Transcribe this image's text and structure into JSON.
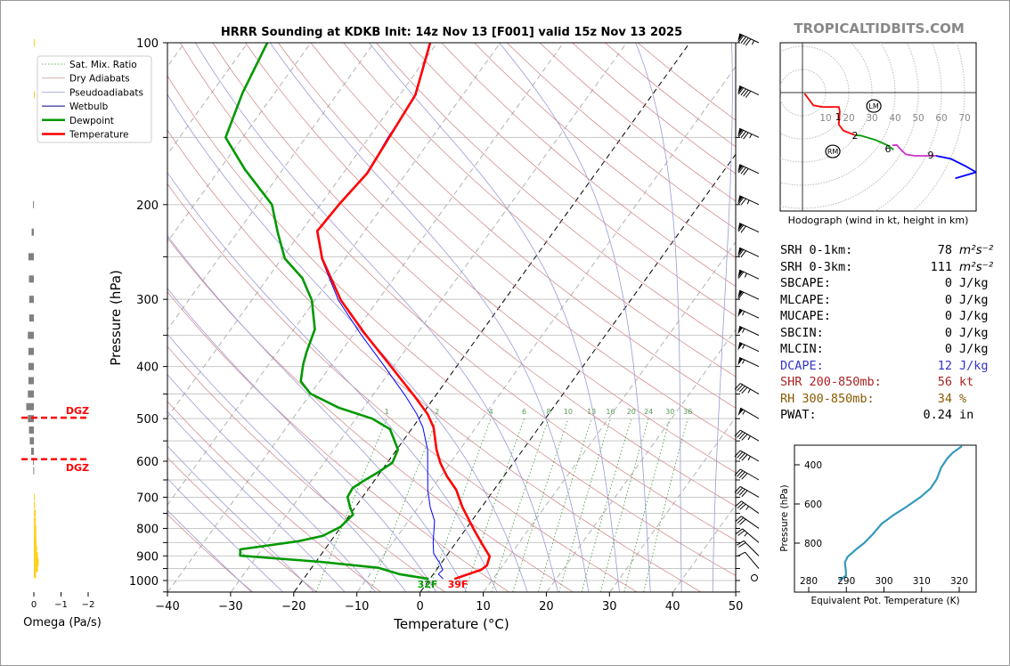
{
  "watermark": "TROPICALTIDBITS.COM",
  "chart_data": [
    {
      "type": "line",
      "name": "skew-t",
      "title": "HRRR Sounding at KDKB Init: 14z Nov 13 [F001] valid 15z Nov 13 2025",
      "xlabel": "Temperature (°C)",
      "ylabel": "Pressure (hPa)",
      "xlim": [
        -40,
        50
      ],
      "ylim": [
        1050,
        100
      ],
      "xticks": [
        "−40",
        "−30",
        "−20",
        "−10",
        "0",
        "10",
        "20",
        "30",
        "40",
        "50"
      ],
      "xtick_values": [
        -40,
        -30,
        -20,
        -10,
        0,
        10,
        20,
        30,
        40,
        50
      ],
      "yticks": [
        "100",
        "200",
        "300",
        "400",
        "500",
        "600",
        "700",
        "800",
        "900",
        "1000"
      ],
      "ytick_values": [
        100,
        200,
        300,
        400,
        500,
        600,
        700,
        800,
        900,
        1000
      ],
      "legend": {
        "placement": "top-left",
        "entries": [
          "Sat. Mix. Ratio",
          "Dry Adiabats",
          "Pseudoadiabats",
          "Wetbulb",
          "Dewpoint",
          "Temperature"
        ]
      },
      "mixing_ratio_labels": [
        "1",
        "2",
        "4",
        "6",
        "8",
        "10",
        "13",
        "16",
        "20",
        "24",
        "30",
        "36"
      ],
      "mixing_ratio_values": [
        1,
        2,
        4,
        6,
        8,
        10,
        13,
        16,
        20,
        24,
        30,
        36
      ],
      "surface_labels": {
        "dewpoint": "32F",
        "temperature": "39F"
      },
      "series": [
        {
          "name": "Temperature",
          "color": "#ff0000",
          "p": [
            100,
            125,
            175,
            200,
            224,
            252,
            301,
            348,
            397,
            454,
            490,
            519,
            571,
            604,
            640,
            678,
            731,
            805,
            859,
            902,
            937,
            955,
            993
          ],
          "t": [
            -61.1,
            -57.5,
            -56.2,
            -57.1,
            -57.5,
            -53.6,
            -45.9,
            -38.2,
            -30.8,
            -23.3,
            -19.2,
            -16.7,
            -13.7,
            -11.6,
            -9.0,
            -6.0,
            -3.0,
            1.4,
            4.5,
            6.9,
            7.5,
            7.1,
            3.9
          ]
        },
        {
          "name": "Dewpoint",
          "color": "#009900",
          "p": [
            100,
            124,
            150,
            172,
            200,
            226,
            252,
            274,
            301,
            341,
            376,
            397,
            426,
            449,
            477,
            500,
            523,
            571,
            604,
            628,
            653,
            673,
            699,
            731,
            754,
            795,
            826,
            845,
            875,
            899,
            923,
            947,
            973,
            993
          ],
          "t": [
            -86.9,
            -85.1,
            -82.7,
            -76.0,
            -67.7,
            -63.5,
            -59.5,
            -54.5,
            -50.5,
            -46.7,
            -45.4,
            -44.5,
            -43.0,
            -40.1,
            -34.0,
            -27.4,
            -23.4,
            -19.8,
            -19.2,
            -20.3,
            -21.7,
            -22.6,
            -22.4,
            -20.8,
            -19.5,
            -20.1,
            -21.9,
            -25.1,
            -33.4,
            -32.7,
            -19.3,
            -9.4,
            -5.4,
            -0.2
          ]
        },
        {
          "name": "Wetbulb",
          "color": "#0000ff",
          "p": [
            100,
            127,
            150,
            175,
            200,
            224,
            252,
            301,
            348,
            397,
            454,
            490,
            519,
            571,
            604,
            678,
            731,
            774,
            851,
            891,
            927,
            955,
            973,
            993
          ],
          "t": [
            -61.2,
            -57.3,
            -57.0,
            -56.2,
            -57.1,
            -57.5,
            -53.7,
            -46.3,
            -38.9,
            -31.8,
            -24.7,
            -20.9,
            -18.4,
            -15.1,
            -13.6,
            -10.5,
            -8.1,
            -5.9,
            -3.6,
            -2.3,
            -0.3,
            1.0,
            0.8,
            2.1
          ]
        }
      ],
      "wind_barbs": {
        "p": [
          100,
          125,
          150,
          175,
          200,
          225,
          250,
          275,
          300,
          325,
          350,
          375,
          400,
          450,
          500,
          550,
          600,
          650,
          700,
          750,
          800,
          850,
          900,
          950,
          1000
        ],
        "dir": [
          295,
          295,
          295,
          295,
          295,
          295,
          295,
          295,
          295,
          295,
          295,
          295,
          295,
          300,
          300,
          300,
          300,
          300,
          300,
          305,
          305,
          310,
          315,
          320,
          0
        ],
        "kt": [
          95,
          90,
          85,
          80,
          75,
          70,
          70,
          65,
          60,
          55,
          55,
          55,
          55,
          45,
          55,
          45,
          45,
          40,
          40,
          35,
          30,
          25,
          20,
          10,
          0
        ]
      }
    },
    {
      "type": "bar",
      "name": "omega",
      "xlabel": "Omega (Pa/s)",
      "xticks": [
        "0",
        "−1",
        "−2"
      ],
      "xtick_values": [
        0,
        -1,
        -2
      ],
      "dgz_label": "DGZ",
      "dgz_levels_hpa": [
        498,
        595
      ],
      "p": [
        100,
        125,
        200,
        225,
        250,
        275,
        300,
        325,
        350,
        375,
        400,
        425,
        450,
        475,
        500,
        525,
        550,
        575,
        600,
        625,
        700,
        725,
        750,
        775,
        800,
        825,
        850,
        875,
        900,
        925,
        950,
        975
      ],
      "omega": [
        -0.02,
        -0.02,
        0.03,
        0.08,
        0.2,
        0.18,
        0.17,
        0.17,
        0.22,
        0.2,
        0.2,
        0.2,
        0.22,
        0.28,
        0.22,
        0.18,
        0.15,
        0.1,
        0.03,
        0.02,
        -0.02,
        -0.04,
        -0.07,
        -0.07,
        -0.09,
        -0.09,
        -0.1,
        -0.12,
        -0.15,
        -0.18,
        -0.15,
        -0.08
      ]
    },
    {
      "type": "line",
      "name": "hodograph",
      "xlabel": "Hodograph (wind in kt, height in km)",
      "ring_labels": [
        "10",
        "20",
        "30",
        "40",
        "50",
        "60",
        "70"
      ],
      "ring_values": [
        10,
        20,
        30,
        40,
        50,
        60,
        70
      ],
      "segments": [
        {
          "color": "#ff0000",
          "u": [
            0.9,
            4.7,
            8.6,
            15.7,
            16.1,
            15.7,
            17.6,
            22.7
          ],
          "v": [
            -0.4,
            -5.5,
            -6.2,
            -6.2,
            -8.1,
            -13.8,
            -16.4,
            -18.4
          ]
        },
        {
          "color": "#009900",
          "u": [
            22.7,
            25.3,
            31.7,
            36.8,
            39.4
          ],
          "v": [
            -18.4,
            -18.6,
            -20.5,
            -22.8,
            -24.7
          ]
        },
        {
          "color": "#cc33cc",
          "u": [
            38.8,
            40.7,
            42.0,
            44.6,
            48.5,
            54.2,
            57.7
          ],
          "v": [
            -22.8,
            -22.6,
            -24.1,
            -26.7,
            -27.3,
            -27.3,
            -27.3
          ]
        },
        {
          "color": "#0000ff",
          "u": [
            57.7,
            64.1,
            70.5,
            75.0,
            66.0
          ],
          "v": [
            -27.3,
            -28.6,
            -31.8,
            -34.4,
            -37.0
          ]
        }
      ],
      "height_labels": [
        {
          "text": "1",
          "u": 15.4,
          "v": -10.4
        },
        {
          "text": "2",
          "u": 22.7,
          "v": -18.5
        },
        {
          "text": "6",
          "u": 36.9,
          "v": -24.2
        },
        {
          "text": "9",
          "u": 55.4,
          "v": -26.9
        }
      ],
      "storm_motion": [
        {
          "text": "LM",
          "u": 30.8,
          "v": -5.8
        },
        {
          "text": "RM",
          "u": 13.1,
          "v": -25.4
        }
      ]
    },
    {
      "type": "line",
      "name": "theta-e profile",
      "xlabel": "Equivalent Pot. Temperature (K)",
      "ylabel": "Pressure (hPa)",
      "xticks": [
        "280",
        "290",
        "300",
        "310",
        "320"
      ],
      "xtick_values": [
        280,
        290,
        300,
        310,
        320
      ],
      "yticks": [
        "400",
        "600",
        "800"
      ],
      "ytick_values": [
        400,
        600,
        800
      ],
      "color": "#3399bb",
      "theta_e": [
        288.0,
        289.9,
        289.9,
        289.6,
        290.3,
        292.7,
        294.7,
        297.0,
        299.4,
        302.6,
        305.7,
        309.7,
        312.4,
        314.0,
        315.2,
        316.8,
        318.3,
        320.7
      ],
      "p": [
        989,
        967,
        944,
        899,
        871,
        830,
        800,
        755,
        701,
        656,
        618,
        565,
        520,
        474,
        414,
        368,
        338,
        305
      ]
    }
  ],
  "stats": [
    {
      "label": "SRH 0-1km:",
      "value": "78",
      "unit": "m²s⁻²",
      "color": "#000000"
    },
    {
      "label": "SRH 0-3km:",
      "value": "111",
      "unit": "m²s⁻²",
      "color": "#000000"
    },
    {
      "label": "SBCAPE:",
      "value": "0",
      "unit": "J/kg",
      "color": "#000000"
    },
    {
      "label": "MLCAPE:",
      "value": "0",
      "unit": "J/kg",
      "color": "#000000"
    },
    {
      "label": "MUCAPE:",
      "value": "0",
      "unit": "J/kg",
      "color": "#000000"
    },
    {
      "label": "SBCIN:",
      "value": "0",
      "unit": "J/kg",
      "color": "#000000"
    },
    {
      "label": "MLCIN:",
      "value": "0",
      "unit": "J/kg",
      "color": "#000000"
    },
    {
      "label": "DCAPE:",
      "value": "12",
      "unit": "J/kg",
      "color": "#3333cc"
    },
    {
      "label": "SHR 200-850mb:",
      "value": "56",
      "unit": "kt",
      "color": "#aa2222"
    },
    {
      "label": "RH 300-850mb:",
      "value": "34",
      "unit": "%",
      "color": "#8b5a00"
    },
    {
      "label": "PWAT:",
      "value": "0.24",
      "unit": "in",
      "color": "#000000"
    }
  ]
}
